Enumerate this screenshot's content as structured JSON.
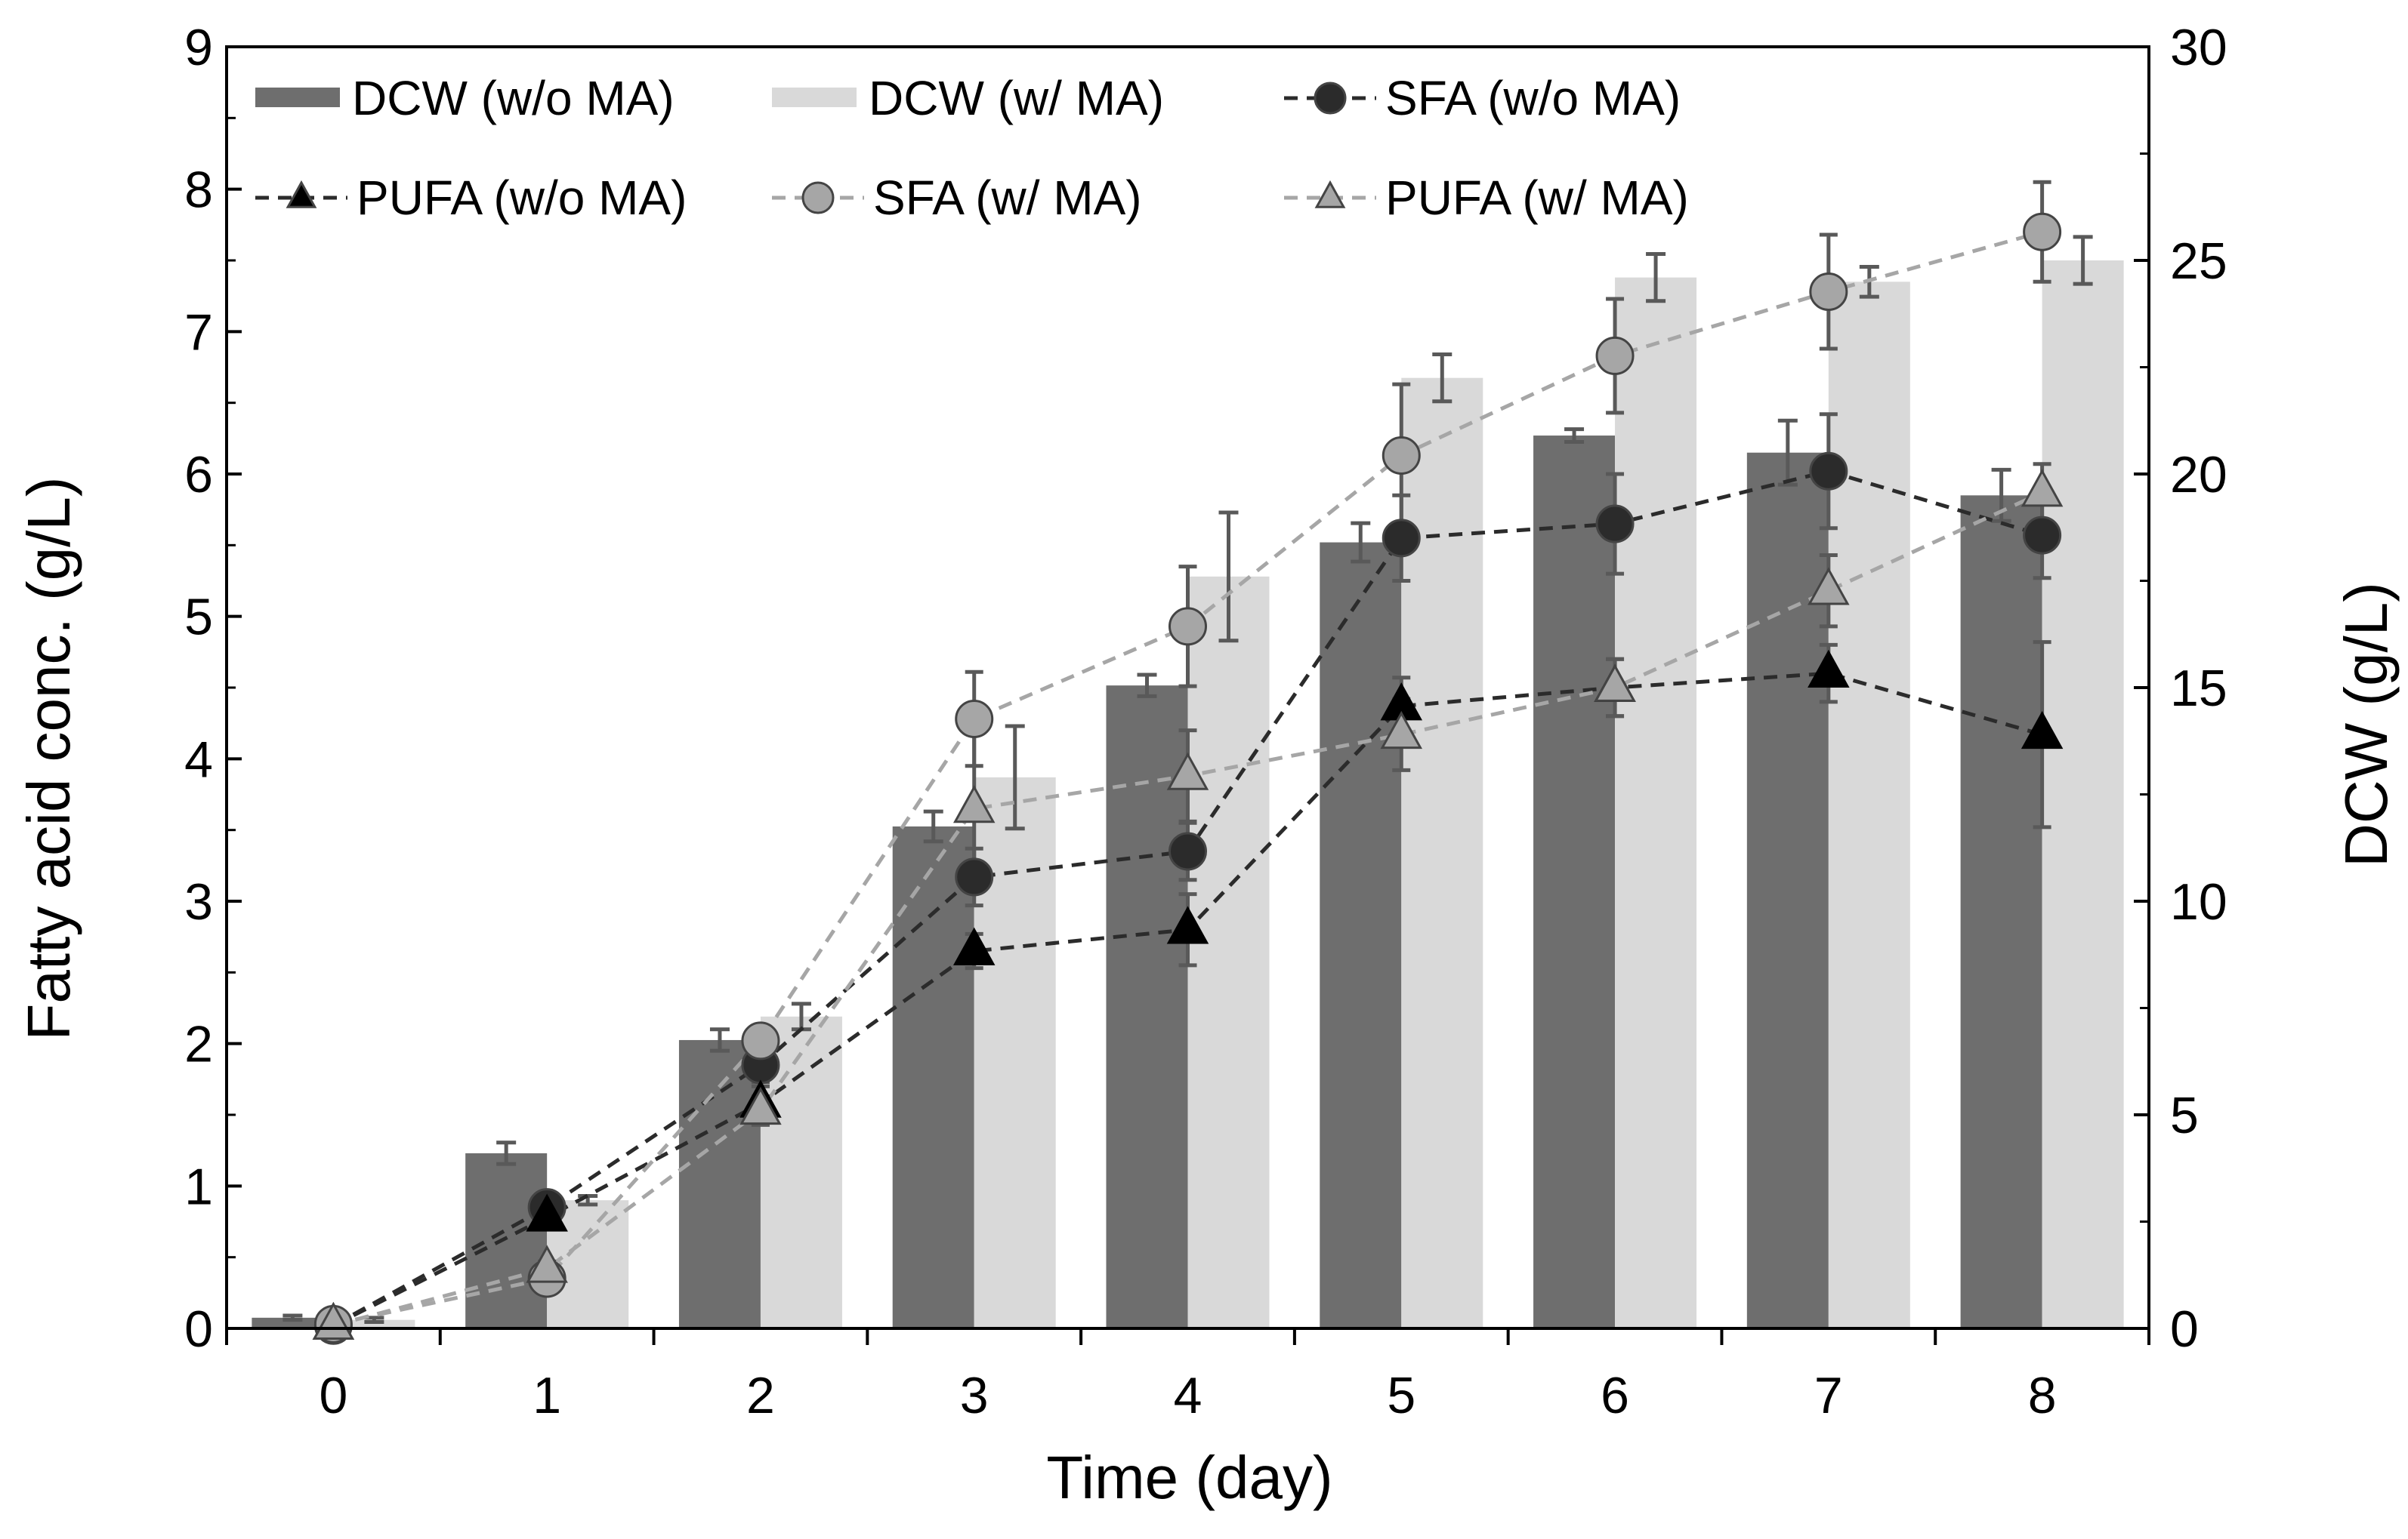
{
  "chart_data": {
    "type": "bar",
    "xlabel": "Time (day)",
    "ylabel": "Fatty acid conc. (g/L)",
    "y2label": "DCW (g/L)",
    "categories": [
      "0",
      "1",
      "2",
      "3",
      "4",
      "5",
      "6",
      "7",
      "8"
    ],
    "ylim": [
      0,
      9
    ],
    "y2lim": [
      0,
      30
    ],
    "yticks": [
      "0",
      "1",
      "2",
      "3",
      "4",
      "5",
      "6",
      "7",
      "8",
      "9"
    ],
    "y2ticks": [
      "0",
      "5",
      "10",
      "15",
      "20",
      "25",
      "30"
    ],
    "grid": false,
    "legend_position": "top-left, inside",
    "bar_series": [
      {
        "name": "DCW (w/o MA)",
        "axis": "right",
        "color": "#6e6e6e",
        "values": [
          0.25,
          4.1,
          6.75,
          11.75,
          15.05,
          18.4,
          20.9,
          20.5,
          19.5
        ],
        "errors": [
          0.05,
          0.25,
          0.25,
          0.35,
          0.25,
          0.45,
          0.15,
          0.75,
          0.6
        ]
      },
      {
        "name": "DCW (w/ MA)",
        "axis": "right",
        "color": "#d9d9d9",
        "values": [
          0.2,
          3.0,
          7.3,
          12.9,
          17.6,
          22.25,
          24.6,
          24.5,
          25.0
        ],
        "errors": [
          0.05,
          0.1,
          0.3,
          1.2,
          1.5,
          0.55,
          0.55,
          0.35,
          0.55
        ]
      }
    ],
    "line_series": [
      {
        "name": "SFA (w/o MA)",
        "axis": "left",
        "marker": "circle",
        "marker_color": "#2b2b2b",
        "line_color": "#2b2b2b",
        "values": [
          0.02,
          0.85,
          1.85,
          3.17,
          3.35,
          5.55,
          5.65,
          6.02,
          5.57
        ],
        "errors": [
          0.02,
          0.05,
          0.15,
          0.2,
          0.2,
          0.3,
          0.35,
          0.4,
          0.3
        ]
      },
      {
        "name": "PUFA (w/o MA)",
        "axis": "left",
        "marker": "triangle",
        "marker_color": "#000000",
        "line_color": "#2b2b2b",
        "values": [
          0.02,
          0.78,
          1.58,
          2.65,
          2.8,
          4.37,
          4.5,
          4.6,
          4.17
        ],
        "errors": [
          0.02,
          0.05,
          0.15,
          0.12,
          0.25,
          0.2,
          0.2,
          0.2,
          0.65
        ]
      },
      {
        "name": "SFA (w/ MA)",
        "axis": "left",
        "marker": "circle",
        "marker_color": "#a6a6a6",
        "line_color": "#a6a6a6",
        "values": [
          0.03,
          0.35,
          2.02,
          4.28,
          4.93,
          6.13,
          6.83,
          7.28,
          7.7
        ],
        "errors": [
          0.02,
          0.05,
          0.1,
          0.33,
          0.42,
          0.5,
          0.4,
          0.4,
          0.35
        ]
      },
      {
        "name": "PUFA (w/ MA)",
        "axis": "left",
        "marker": "triangle",
        "marker_color": "#a6a6a6",
        "line_color": "#a6a6a6",
        "values": [
          0.02,
          0.42,
          1.53,
          3.65,
          3.88,
          4.17,
          4.5,
          5.18,
          5.87
        ],
        "errors": [
          0.02,
          0.05,
          0.1,
          0.55,
          0.32,
          0.25,
          0.2,
          0.25,
          0.2
        ]
      }
    ]
  }
}
